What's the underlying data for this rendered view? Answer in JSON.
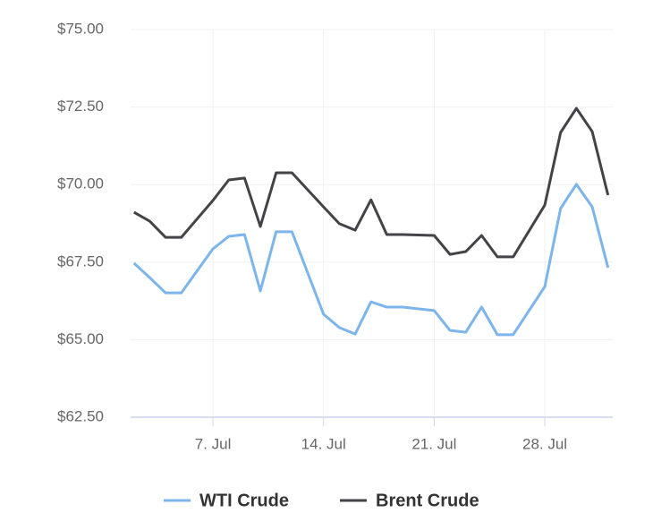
{
  "chart_data": {
    "type": "line",
    "x": [
      2,
      3,
      4,
      5,
      7,
      8,
      9,
      10,
      11,
      12,
      14,
      15,
      16,
      17,
      18,
      19,
      21,
      22,
      23,
      24,
      25,
      26,
      28,
      29,
      30,
      31,
      32
    ],
    "series": [
      {
        "name": "WTI Crude",
        "color": "#7cb5ec",
        "values": [
          67.47,
          67.0,
          66.51,
          66.51,
          67.93,
          68.33,
          68.39,
          66.57,
          68.48,
          68.48,
          65.82,
          65.39,
          65.18,
          66.22,
          66.05,
          66.05,
          65.94,
          65.3,
          65.24,
          66.05,
          65.16,
          65.16,
          66.71,
          69.23,
          70.01,
          69.28,
          67.32
        ]
      },
      {
        "name": "Brent Crude",
        "color": "#434348",
        "values": [
          69.11,
          68.82,
          68.3,
          68.3,
          69.49,
          70.15,
          70.21,
          68.65,
          70.38,
          70.38,
          69.28,
          68.74,
          68.53,
          69.51,
          68.39,
          68.39,
          68.36,
          67.75,
          67.84,
          68.36,
          67.67,
          67.67,
          69.34,
          71.68,
          72.46,
          71.71,
          69.66
        ]
      }
    ],
    "xlim": [
      1.79,
      32.3
    ],
    "xticks": [
      {
        "value": 7,
        "label": "7. Jul"
      },
      {
        "value": 14,
        "label": "14. Jul"
      },
      {
        "value": 21,
        "label": "21. Jul"
      },
      {
        "value": 28,
        "label": "28. Jul"
      }
    ],
    "ylim": [
      62.5,
      75
    ],
    "yticks": [
      {
        "value": 62.5,
        "label": "$62.50"
      },
      {
        "value": 65,
        "label": "$65.00"
      },
      {
        "value": 67.5,
        "label": "$67.50"
      },
      {
        "value": 70,
        "label": "$70.00"
      },
      {
        "value": 72.5,
        "label": "$72.50"
      },
      {
        "value": 75,
        "label": "$75.00"
      }
    ],
    "grid": true,
    "legend": "bottom"
  }
}
